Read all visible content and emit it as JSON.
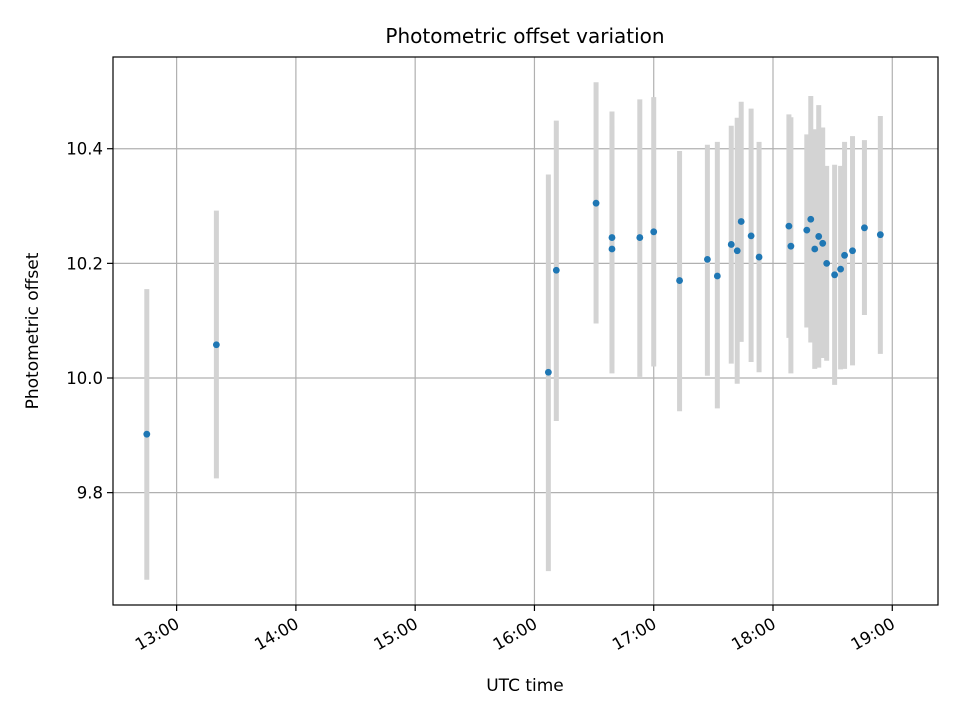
{
  "chart_data": {
    "type": "scatter",
    "title": "Photometric offset variation",
    "xlabel": "UTC time",
    "ylabel": "Photometric offset",
    "x_ticks": [
      "13:00",
      "14:00",
      "15:00",
      "16:00",
      "17:00",
      "18:00",
      "19:00"
    ],
    "y_ticks": [
      "9.8",
      "10.0",
      "10.2",
      "10.4"
    ],
    "y_tick_values": [
      9.8,
      10.0,
      10.2,
      10.4
    ],
    "xlim": [
      "12:28",
      "19:23"
    ],
    "ylim": [
      9.604,
      10.56
    ],
    "grid": true,
    "colors": {
      "points": "#1f77b4",
      "errorbars": "#d3d3d3",
      "grid": "#b0b0b0"
    },
    "series": [
      {
        "points": [
          {
            "x": "12:45",
            "y": 9.902,
            "low": 9.648,
            "high": 10.155
          },
          {
            "x": "13:20",
            "y": 10.058,
            "low": 9.825,
            "high": 10.292
          },
          {
            "x": "16:07",
            "y": 10.01,
            "low": 9.663,
            "high": 10.355
          },
          {
            "x": "16:11",
            "y": 10.188,
            "low": 9.925,
            "high": 10.449
          },
          {
            "x": "16:31",
            "y": 10.305,
            "low": 10.095,
            "high": 10.516
          },
          {
            "x": "16:39",
            "y": 10.245,
            "low": 10.025,
            "high": 10.465
          },
          {
            "x": "16:39",
            "y": 10.225,
            "low": 10.008,
            "high": 10.44
          },
          {
            "x": "16:53",
            "y": 10.245,
            "low": 10.002,
            "high": 10.486
          },
          {
            "x": "17:00",
            "y": 10.255,
            "low": 10.02,
            "high": 10.49
          },
          {
            "x": "17:13",
            "y": 10.17,
            "low": 9.942,
            "high": 10.396
          },
          {
            "x": "17:27",
            "y": 10.207,
            "low": 10.004,
            "high": 10.407
          },
          {
            "x": "17:32",
            "y": 10.178,
            "low": 9.947,
            "high": 10.412
          },
          {
            "x": "17:39",
            "y": 10.233,
            "low": 10.025,
            "high": 10.44
          },
          {
            "x": "17:42",
            "y": 10.222,
            "low": 9.99,
            "high": 10.454
          },
          {
            "x": "17:44",
            "y": 10.273,
            "low": 10.063,
            "high": 10.482
          },
          {
            "x": "17:49",
            "y": 10.248,
            "low": 10.028,
            "high": 10.47
          },
          {
            "x": "17:53",
            "y": 10.211,
            "low": 10.01,
            "high": 10.412
          },
          {
            "x": "18:08",
            "y": 10.265,
            "low": 10.07,
            "high": 10.46
          },
          {
            "x": "18:09",
            "y": 10.23,
            "low": 10.008,
            "high": 10.455
          },
          {
            "x": "18:17",
            "y": 10.258,
            "low": 10.088,
            "high": 10.425
          },
          {
            "x": "18:19",
            "y": 10.277,
            "low": 10.062,
            "high": 10.492
          },
          {
            "x": "18:21",
            "y": 10.225,
            "low": 10.016,
            "high": 10.434
          },
          {
            "x": "18:23",
            "y": 10.247,
            "low": 10.018,
            "high": 10.476
          },
          {
            "x": "18:25",
            "y": 10.235,
            "low": 10.035,
            "high": 10.437
          },
          {
            "x": "18:27",
            "y": 10.2,
            "low": 10.03,
            "high": 10.37
          },
          {
            "x": "18:31",
            "y": 10.18,
            "low": 9.988,
            "high": 10.372
          },
          {
            "x": "18:34",
            "y": 10.19,
            "low": 10.015,
            "high": 10.37
          },
          {
            "x": "18:36",
            "y": 10.214,
            "low": 10.016,
            "high": 10.412
          },
          {
            "x": "18:40",
            "y": 10.222,
            "low": 10.022,
            "high": 10.422
          },
          {
            "x": "18:46",
            "y": 10.262,
            "low": 10.11,
            "high": 10.415
          },
          {
            "x": "18:54",
            "y": 10.25,
            "low": 10.042,
            "high": 10.457
          }
        ]
      }
    ]
  }
}
